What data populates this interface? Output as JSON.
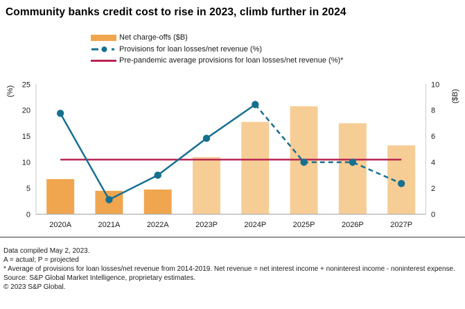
{
  "header": {
    "title": "Community banks credit cost to rise in 2023, climb further in 2024"
  },
  "legend": {
    "items": [
      {
        "label": "Net charge-offs ($B)",
        "swatch": "bar",
        "color_key": "bar_actual"
      },
      {
        "label": "Provisions for loan losses/net revenue (%)",
        "swatch": "dashed-line-dot",
        "color_key": "line"
      },
      {
        "label": "Pre-pandemic average provisions for loan losses/net revenue (%)*",
        "swatch": "line",
        "color_key": "reference"
      }
    ]
  },
  "chart_data": {
    "type": "combo",
    "categories": [
      "2020A",
      "2021A",
      "2022A",
      "2023P",
      "2024P",
      "2025P",
      "2026P",
      "2027P"
    ],
    "series": [
      {
        "name": "Net charge-offs ($B)",
        "type": "bar",
        "axis": "right",
        "values": [
          2.7,
          1.8,
          1.9,
          4.4,
          7.1,
          8.3,
          7.0,
          5.3
        ],
        "note": "bars for A years use actual color, P years use projected color"
      },
      {
        "name": "Provisions for loan losses/net revenue (%)",
        "type": "line",
        "axis": "left",
        "values": [
          19.4,
          2.8,
          7.5,
          14.6,
          21.1,
          10.0,
          10.0,
          5.9
        ],
        "solid_through_index": 4
      }
    ],
    "reference_line": {
      "name": "Pre-pandemic average provisions for loan losses/net revenue (%)*",
      "axis": "left",
      "value": 10.5
    },
    "left_axis": {
      "label": "(%)",
      "min": 0,
      "max": 25,
      "ticks": [
        0,
        5,
        10,
        15,
        20,
        25
      ]
    },
    "right_axis": {
      "label": "($B)",
      "min": 0,
      "max": 10,
      "ticks": [
        0,
        2,
        4,
        6,
        8,
        10
      ]
    },
    "grid": false,
    "legend_position": "top-left"
  },
  "colors": {
    "bar_actual": "#F0A64F",
    "bar_projected": "#F7CD96",
    "line": "#17708F",
    "reference": "#B92553",
    "axis_line": "#c9c9c9",
    "baseline": "#b0b0b0",
    "text": "#1a1a1a"
  },
  "footer": {
    "line1": "Data compiled May 2, 2023.",
    "line2": "A = actual; P = projected",
    "line3": "* Average of provisions for loan losses/net revenue from 2014-2019. Net revenue = net interest income + noninterest income - noninterest expense.",
    "line4": "Source: S&P Global Market Intelligence, proprietary estimates.",
    "line5": "© 2023 S&P Global."
  }
}
